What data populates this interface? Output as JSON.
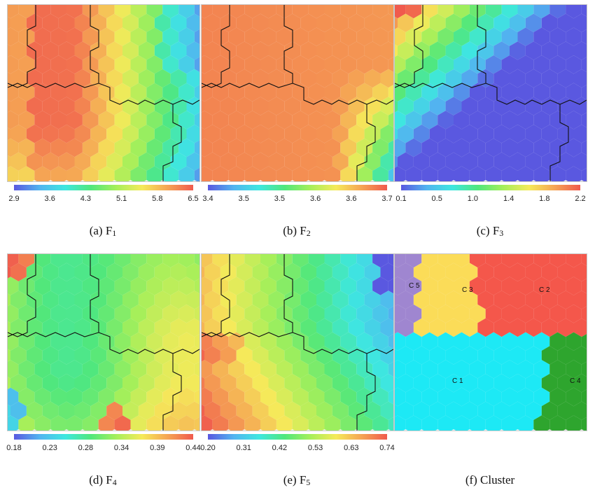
{
  "panels": [
    {
      "id": "a",
      "caption_prefix": "(a) F",
      "caption_sub": "1",
      "ticks": [
        "2.9",
        "3.6",
        "4.3",
        "5.1",
        "5.8",
        "6.5"
      ]
    },
    {
      "id": "b",
      "caption_prefix": "(b) F",
      "caption_sub": "2",
      "ticks": [
        "3.4",
        "3.5",
        "3.5",
        "3.6",
        "3.6",
        "3.7"
      ]
    },
    {
      "id": "c",
      "caption_prefix": "(c) F",
      "caption_sub": "3",
      "ticks": [
        "0.1",
        "0.5",
        "1.0",
        "1.4",
        "1.8",
        "2.2"
      ]
    },
    {
      "id": "d",
      "caption_prefix": "(d) F",
      "caption_sub": "4",
      "ticks": [
        "0.18",
        "0.23",
        "0.28",
        "0.34",
        "0.39",
        "0.44"
      ]
    },
    {
      "id": "e",
      "caption_prefix": "(e) F",
      "caption_sub": "5",
      "ticks": [
        "0.20",
        "0.31",
        "0.42",
        "0.53",
        "0.63",
        "0.74"
      ]
    },
    {
      "id": "f",
      "caption_prefix": "(f) Cluster",
      "caption_sub": "",
      "ticks": []
    }
  ],
  "clusters": [
    {
      "name": "C 5",
      "color": "#9f86d0"
    },
    {
      "name": "C 3",
      "color": "#fbdc58"
    },
    {
      "name": "C 2",
      "color": "#f4574b"
    },
    {
      "name": "C 1",
      "color": "#1de9f5"
    },
    {
      "name": "C 4",
      "color": "#2ea52e"
    }
  ],
  "colormap": [
    "#5a58e0",
    "#52b4f0",
    "#3ee7e0",
    "#50e77c",
    "#a6ef5a",
    "#f5ea5a",
    "#f5a454",
    "#f05a4d"
  ]
}
